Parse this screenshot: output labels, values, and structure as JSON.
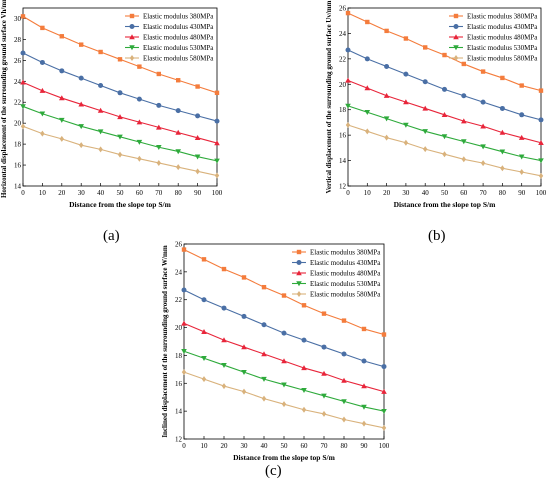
{
  "figure": {
    "panel_labels": [
      "(a)",
      "(b)",
      "(c)"
    ]
  },
  "series_style": [
    {
      "name": "Elastic modulus 380MPa",
      "color": "#f47c3c",
      "marker": "square"
    },
    {
      "name": "Elastic modulus 430MPa",
      "color": "#4a6fa5",
      "marker": "circle"
    },
    {
      "name": "Elastic modulus 480MPa",
      "color": "#e8253a",
      "marker": "triangle-up"
    },
    {
      "name": "Elastic modulus 530MPa",
      "color": "#2eaa3b",
      "marker": "triangle-down"
    },
    {
      "name": "Elastic modulus 580MPa",
      "color": "#d9b27c",
      "marker": "diamond"
    }
  ],
  "chart_data": [
    {
      "type": "line",
      "panel": "(a)",
      "xlabel": "Distance from the slope top S/m",
      "ylabel": "Horizontal displacement of the surrounding ground surface Vh/mm",
      "xlim": [
        0,
        100
      ],
      "ylim": [
        14,
        31
      ],
      "xticks": [
        0,
        10,
        20,
        30,
        40,
        50,
        60,
        70,
        80,
        90,
        100
      ],
      "yticks": [
        14,
        16,
        18,
        20,
        22,
        24,
        26,
        28,
        30
      ],
      "x": [
        0,
        10,
        20,
        30,
        40,
        50,
        60,
        70,
        80,
        90,
        100
      ],
      "legend": "top-right",
      "series": [
        {
          "name": "Elastic modulus 380MPa",
          "values": [
            30.2,
            29.1,
            28.3,
            27.5,
            26.8,
            26.1,
            25.4,
            24.7,
            24.1,
            23.5,
            22.9
          ]
        },
        {
          "name": "Elastic modulus 430MPa",
          "values": [
            26.7,
            25.8,
            25.0,
            24.3,
            23.6,
            22.9,
            22.3,
            21.7,
            21.2,
            20.7,
            20.2
          ]
        },
        {
          "name": "Elastic modulus 480MPa",
          "values": [
            23.9,
            23.1,
            22.4,
            21.8,
            21.2,
            20.6,
            20.1,
            19.6,
            19.1,
            18.6,
            18.1
          ]
        },
        {
          "name": "Elastic modulus 530MPa",
          "values": [
            21.6,
            20.9,
            20.3,
            19.7,
            19.2,
            18.7,
            18.2,
            17.7,
            17.3,
            16.8,
            16.4
          ]
        },
        {
          "name": "Elastic modulus 580MPa",
          "values": [
            19.7,
            19.0,
            18.5,
            17.9,
            17.5,
            17.0,
            16.6,
            16.2,
            15.8,
            15.4,
            15.0
          ]
        }
      ]
    },
    {
      "type": "line",
      "panel": "(b)",
      "xlabel": "Distance from the slope top S/m",
      "ylabel": "Vertical displacement of the surrounding ground surface Uv/mm",
      "xlim": [
        0,
        100
      ],
      "ylim": [
        12,
        26
      ],
      "xticks": [
        0,
        10,
        20,
        30,
        40,
        50,
        60,
        70,
        80,
        90,
        100
      ],
      "yticks": [
        12,
        14,
        16,
        18,
        20,
        22,
        24,
        26
      ],
      "x": [
        0,
        10,
        20,
        30,
        40,
        50,
        60,
        70,
        80,
        90,
        100
      ],
      "legend": "top-right",
      "series": [
        {
          "name": "Elastic modulus 380MPa",
          "values": [
            25.6,
            24.9,
            24.2,
            23.6,
            22.9,
            22.3,
            21.6,
            21.0,
            20.5,
            19.9,
            19.5
          ]
        },
        {
          "name": "Elastic modulus 430MPa",
          "values": [
            22.7,
            22.0,
            21.4,
            20.8,
            20.2,
            19.6,
            19.1,
            18.6,
            18.1,
            17.6,
            17.2
          ]
        },
        {
          "name": "Elastic modulus 480MPa",
          "values": [
            20.3,
            19.7,
            19.1,
            18.6,
            18.1,
            17.6,
            17.1,
            16.7,
            16.2,
            15.8,
            15.4
          ]
        },
        {
          "name": "Elastic modulus 530MPa",
          "values": [
            18.3,
            17.8,
            17.3,
            16.8,
            16.3,
            15.9,
            15.5,
            15.1,
            14.7,
            14.3,
            14.0
          ]
        },
        {
          "name": "Elastic modulus 580MPa",
          "values": [
            16.8,
            16.3,
            15.8,
            15.4,
            14.9,
            14.5,
            14.1,
            13.8,
            13.4,
            13.1,
            12.8
          ]
        }
      ]
    },
    {
      "type": "line",
      "panel": "(c)",
      "xlabel": "Distance from the slope top S/m",
      "ylabel": "Inclined displacement of the surrounding ground surface W/mm",
      "xlim": [
        0,
        100
      ],
      "ylim": [
        12,
        26
      ],
      "xticks": [
        0,
        10,
        20,
        30,
        40,
        50,
        60,
        70,
        80,
        90,
        100
      ],
      "yticks": [
        12,
        14,
        16,
        18,
        20,
        22,
        24,
        26
      ],
      "x": [
        0,
        10,
        20,
        30,
        40,
        50,
        60,
        70,
        80,
        90,
        100
      ],
      "legend": "top-right",
      "series": [
        {
          "name": "Elastic modulus 380MPa",
          "values": [
            25.6,
            24.9,
            24.2,
            23.6,
            22.9,
            22.3,
            21.6,
            21.0,
            20.5,
            19.9,
            19.5
          ]
        },
        {
          "name": "Elastic modulus 430MPa",
          "values": [
            22.7,
            22.0,
            21.4,
            20.8,
            20.2,
            19.6,
            19.1,
            18.6,
            18.1,
            17.6,
            17.2
          ]
        },
        {
          "name": "Elastic modulus 480MPa",
          "values": [
            20.3,
            19.7,
            19.1,
            18.6,
            18.1,
            17.6,
            17.1,
            16.7,
            16.2,
            15.8,
            15.4
          ]
        },
        {
          "name": "Elastic modulus 530MPa",
          "values": [
            18.3,
            17.8,
            17.3,
            16.8,
            16.3,
            15.9,
            15.5,
            15.1,
            14.7,
            14.3,
            14.0
          ]
        },
        {
          "name": "Elastic modulus 580MPa",
          "values": [
            16.8,
            16.3,
            15.8,
            15.4,
            14.9,
            14.5,
            14.1,
            13.8,
            13.4,
            13.1,
            12.8
          ]
        }
      ]
    }
  ]
}
